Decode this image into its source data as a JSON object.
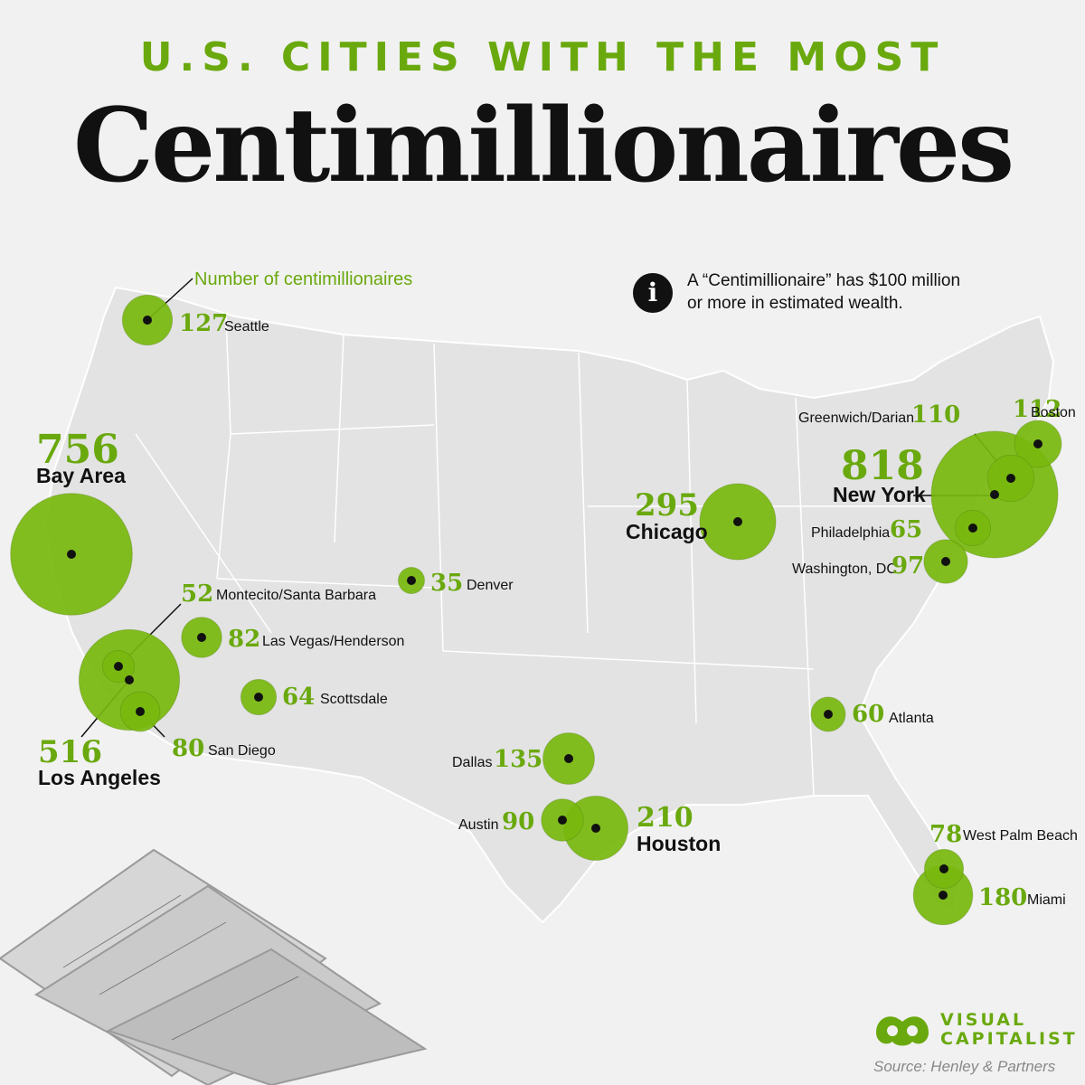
{
  "header": {
    "kicker": "U.S. CITIES WITH THE MOST",
    "title": "Centimillionaires"
  },
  "legend": {
    "label": "Number of centimillionaires"
  },
  "info": {
    "icon": "info-icon",
    "text": "A “Centimillionaire” has $100 million or more in estimated wealth."
  },
  "footer": {
    "brand_line1": "VISUAL",
    "brand_line2": "CAPITALIST",
    "source": "Source: Henley & Partners"
  },
  "colors": {
    "accent": "#6aa90e",
    "bubble": "#78b80e",
    "bubble_dark": "#4f7f0b",
    "map": "#e3e3e3"
  },
  "chart_data": {
    "type": "bubble-map",
    "series": [
      {
        "city": "New York",
        "value": 818
      },
      {
        "city": "Bay Area",
        "value": 756
      },
      {
        "city": "Los Angeles",
        "value": 516
      },
      {
        "city": "Chicago",
        "value": 295
      },
      {
        "city": "Houston",
        "value": 210
      },
      {
        "city": "Miami",
        "value": 180
      },
      {
        "city": "Dallas",
        "value": 135
      },
      {
        "city": "Seattle",
        "value": 127
      },
      {
        "city": "Boston",
        "value": 112
      },
      {
        "city": "Greenwich/Darian",
        "value": 110
      },
      {
        "city": "Washington, DC",
        "value": 97
      },
      {
        "city": "Austin",
        "value": 90
      },
      {
        "city": "Las Vegas/Henderson",
        "value": 82
      },
      {
        "city": "San Diego",
        "value": 80
      },
      {
        "city": "West Palm Beach",
        "value": 78
      },
      {
        "city": "Philadelphia",
        "value": 65
      },
      {
        "city": "Scottsdale",
        "value": 64
      },
      {
        "city": "Atlanta",
        "value": 60
      },
      {
        "city": "Montecito/Santa Barbara",
        "value": 52
      },
      {
        "city": "Denver",
        "value": 35
      }
    ]
  }
}
